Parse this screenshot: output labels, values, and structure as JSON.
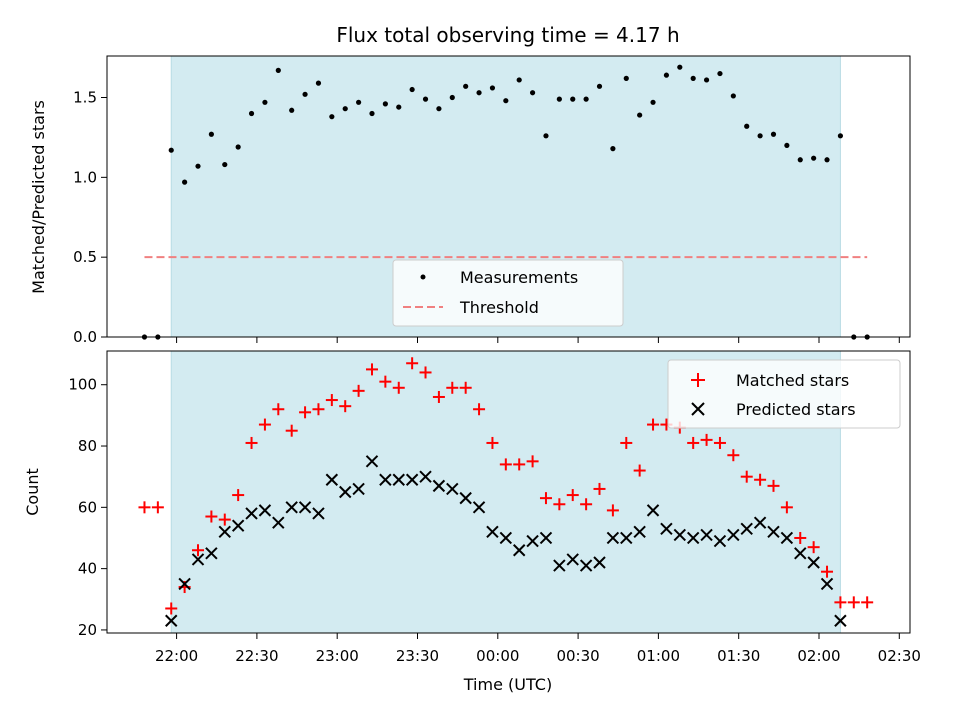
{
  "chart_data": [
    {
      "type": "scatter",
      "title": "Flux total observing time = 4.17 h",
      "ylabel": "Matched/Predicted stars",
      "xlabel": "",
      "xlim": [
        "21:34",
        "02:34"
      ],
      "ylim": [
        0,
        1.76
      ],
      "yticks": [
        "0.0",
        "0.5",
        "1.0",
        "1.5"
      ],
      "shaded_interval": [
        "21:58",
        "02:08"
      ],
      "colors": {
        "measurements": "#000000",
        "threshold": "#f08080",
        "shade": "#d3ebf1"
      },
      "legend": {
        "placement": "bottom-center",
        "entries": [
          "Measurements",
          "Threshold"
        ]
      },
      "threshold": {
        "name": "Threshold",
        "value": 0.5,
        "x_range": [
          "21:48",
          "02:18"
        ]
      },
      "series": [
        {
          "name": "Measurements",
          "x": [
            "21:48",
            "21:53",
            "21:58",
            "22:03",
            "22:08",
            "22:13",
            "22:18",
            "22:23",
            "22:28",
            "22:33",
            "22:38",
            "22:43",
            "22:48",
            "22:53",
            "22:58",
            "23:03",
            "23:08",
            "23:13",
            "23:18",
            "23:23",
            "23:28",
            "23:33",
            "23:38",
            "23:43",
            "23:48",
            "23:53",
            "23:58",
            "00:03",
            "00:08",
            "00:13",
            "00:18",
            "00:23",
            "00:28",
            "00:33",
            "00:38",
            "00:43",
            "00:48",
            "00:53",
            "00:58",
            "01:03",
            "01:08",
            "01:13",
            "01:18",
            "01:23",
            "01:28",
            "01:33",
            "01:38",
            "01:43",
            "01:48",
            "01:53",
            "01:58",
            "02:03",
            "02:08",
            "02:13",
            "02:18"
          ],
          "y": [
            0.0,
            0.0,
            1.17,
            0.97,
            1.07,
            1.27,
            1.08,
            1.19,
            1.4,
            1.47,
            1.67,
            1.42,
            1.52,
            1.59,
            1.38,
            1.43,
            1.47,
            1.4,
            1.46,
            1.44,
            1.55,
            1.49,
            1.43,
            1.5,
            1.57,
            1.53,
            1.56,
            1.48,
            1.61,
            1.53,
            1.26,
            1.49,
            1.49,
            1.49,
            1.57,
            1.18,
            1.62,
            1.39,
            1.47,
            1.64,
            1.69,
            1.62,
            1.61,
            1.65,
            1.51,
            1.32,
            1.26,
            1.27,
            1.2,
            1.11,
            1.12,
            1.11,
            1.26,
            0.0,
            0.0
          ]
        }
      ]
    },
    {
      "type": "scatter",
      "title": "",
      "xlabel": "Time (UTC)",
      "ylabel": "Count",
      "xlim": [
        "21:34",
        "02:34"
      ],
      "ylim": [
        19,
        111
      ],
      "xticks": [
        "22:00",
        "22:30",
        "23:00",
        "23:30",
        "00:00",
        "00:30",
        "01:00",
        "01:30",
        "02:00",
        "02:30"
      ],
      "yticks": [
        "20",
        "40",
        "60",
        "80",
        "100"
      ],
      "shaded_interval": [
        "21:58",
        "02:08"
      ],
      "colors": {
        "matched": "#ff0000",
        "predicted": "#000000",
        "shade": "#d3ebf1"
      },
      "legend": {
        "placement": "top-right",
        "entries": [
          "Matched stars",
          "Predicted stars"
        ]
      },
      "series": [
        {
          "name": "Matched stars",
          "marker": "plus",
          "x": [
            "21:48",
            "21:53",
            "21:58",
            "22:03",
            "22:08",
            "22:13",
            "22:18",
            "22:23",
            "22:28",
            "22:33",
            "22:38",
            "22:43",
            "22:48",
            "22:53",
            "22:58",
            "23:03",
            "23:08",
            "23:13",
            "23:18",
            "23:23",
            "23:28",
            "23:33",
            "23:38",
            "23:43",
            "23:48",
            "23:53",
            "23:58",
            "00:03",
            "00:08",
            "00:13",
            "00:18",
            "00:23",
            "00:28",
            "00:33",
            "00:38",
            "00:43",
            "00:48",
            "00:53",
            "00:58",
            "01:03",
            "01:08",
            "01:13",
            "01:18",
            "01:23",
            "01:28",
            "01:33",
            "01:38",
            "01:43",
            "01:48",
            "01:53",
            "01:58",
            "02:03",
            "02:08",
            "02:13",
            "02:18"
          ],
          "y": [
            60,
            60,
            27,
            34,
            46,
            57,
            56,
            64,
            81,
            87,
            92,
            85,
            91,
            92,
            95,
            93,
            98,
            105,
            101,
            99,
            107,
            104,
            96,
            99,
            99,
            92,
            81,
            74,
            74,
            75,
            63,
            61,
            64,
            61,
            66,
            59,
            81,
            72,
            87,
            87,
            86,
            81,
            82,
            81,
            77,
            70,
            69,
            67,
            60,
            50,
            47,
            39,
            29,
            29,
            29
          ]
        },
        {
          "name": "Predicted stars",
          "marker": "x",
          "x": [
            "21:58",
            "22:03",
            "22:08",
            "22:13",
            "22:18",
            "22:23",
            "22:28",
            "22:33",
            "22:38",
            "22:43",
            "22:48",
            "22:53",
            "22:58",
            "23:03",
            "23:08",
            "23:13",
            "23:18",
            "23:23",
            "23:28",
            "23:33",
            "23:38",
            "23:43",
            "23:48",
            "23:53",
            "23:58",
            "00:03",
            "00:08",
            "00:13",
            "00:18",
            "00:23",
            "00:28",
            "00:33",
            "00:38",
            "00:43",
            "00:48",
            "00:53",
            "00:58",
            "01:03",
            "01:08",
            "01:13",
            "01:18",
            "01:23",
            "01:28",
            "01:33",
            "01:38",
            "01:43",
            "01:48",
            "01:53",
            "01:58",
            "02:03",
            "02:08"
          ],
          "y": [
            23,
            35,
            43,
            45,
            52,
            54,
            58,
            59,
            55,
            60,
            60,
            58,
            69,
            65,
            66,
            75,
            69,
            69,
            69,
            70,
            67,
            66,
            63,
            60,
            52,
            50,
            46,
            49,
            50,
            41,
            43,
            41,
            42,
            50,
            50,
            52,
            59,
            53,
            51,
            50,
            51,
            49,
            51,
            53,
            55,
            52,
            50,
            45,
            42,
            35,
            23
          ]
        }
      ]
    }
  ]
}
